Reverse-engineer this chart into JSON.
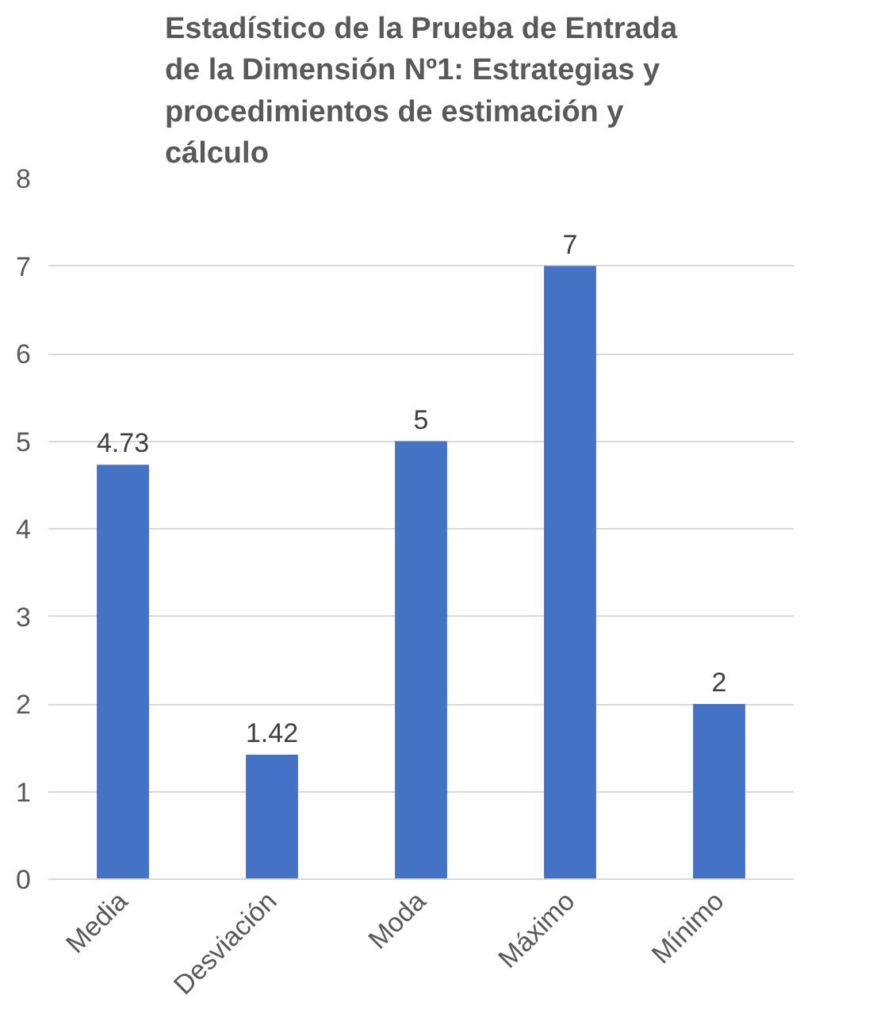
{
  "chart_data": {
    "type": "bar",
    "title": "Estadístico de la Prueba de Entrada de la Dimensión Nº1: Estrategias y procedimientos de estimación y cálculo",
    "categories": [
      "Media",
      "Desviación",
      "Moda",
      "Máximo",
      "Mínimo"
    ],
    "values": [
      4.73,
      1.42,
      5,
      7,
      2
    ],
    "color": "#4472c4",
    "ylim": [
      0,
      8
    ],
    "yticks": [
      0,
      1,
      2,
      3,
      4,
      5,
      6,
      7,
      8
    ],
    "grid": "y",
    "data_labels": true
  }
}
